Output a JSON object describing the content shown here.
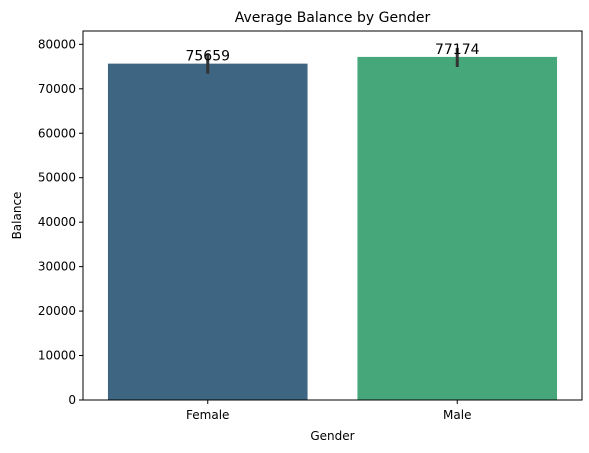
{
  "chart_data": {
    "type": "bar",
    "title": "Average Balance by Gender",
    "xlabel": "Gender",
    "ylabel": "Balance",
    "categories": [
      "Female",
      "Male"
    ],
    "values": [
      75659,
      77174
    ],
    "data_labels": [
      "75659",
      "77174"
    ],
    "error_bars": [
      {
        "low": 73400,
        "high": 78000
      },
      {
        "low": 74900,
        "high": 79200
      }
    ],
    "colors": [
      "#3e6581",
      "#46a87a"
    ],
    "error_bar_color": "#333333",
    "ylim": [
      0,
      83000
    ],
    "yticks": [
      0,
      10000,
      20000,
      30000,
      40000,
      50000,
      60000,
      70000,
      80000
    ],
    "ytick_labels": [
      "0",
      "10000",
      "20000",
      "30000",
      "40000",
      "50000",
      "60000",
      "70000",
      "80000"
    ],
    "grid": false,
    "legend": "none"
  }
}
